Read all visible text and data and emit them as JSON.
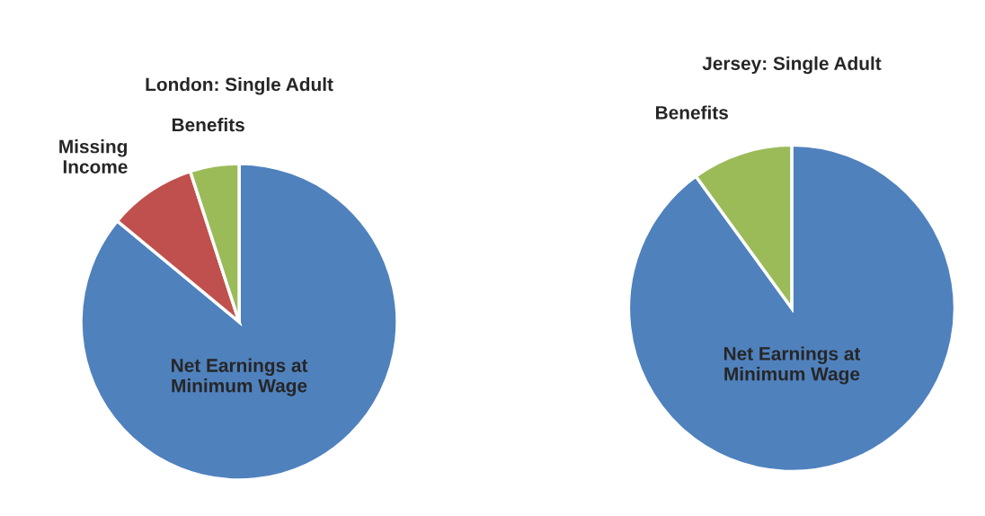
{
  "chart_data": [
    {
      "type": "pie",
      "title": "London: Single Adult",
      "categories": [
        "Net Earnings at\nMinimum Wage",
        "Missing\nIncome",
        "Benefits"
      ],
      "values": [
        86,
        9,
        5
      ],
      "colors": [
        "#4f81bd",
        "#c0504d",
        "#9bbb59"
      ]
    },
    {
      "type": "pie",
      "title": "Jersey: Single Adult",
      "categories": [
        "Net Earnings at\nMinimum Wage",
        "Benefits"
      ],
      "values": [
        90,
        10
      ],
      "colors": [
        "#4f81bd",
        "#9bbb59"
      ]
    }
  ]
}
